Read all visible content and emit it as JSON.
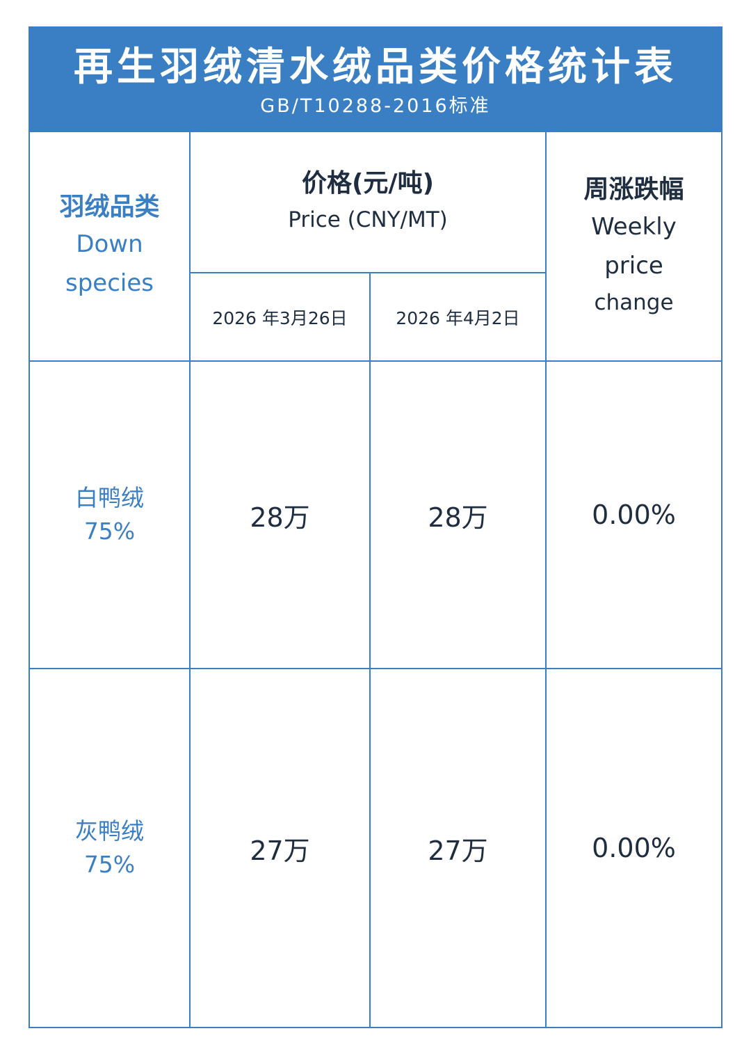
{
  "header": {
    "title": "再生羽绒清水绒品类价格统计表",
    "subtitle": "GB/T10288-2016标准"
  },
  "columns": {
    "species": {
      "cn": "羽绒品类",
      "en_line1": "Down",
      "en_line2": "species"
    },
    "price": {
      "cn": "价格(元/吨)",
      "en": "Price (CNY/MT)"
    },
    "date1": "2026 年3月26日",
    "date2": "2026 年4月2日",
    "change": {
      "cn": "周涨跌幅",
      "en_line1": "Weekly",
      "en_line2": "price",
      "en_line3": "change"
    }
  },
  "rows": [
    {
      "species_name": "白鸭绒",
      "species_grade": "75%",
      "price1": "28万",
      "price2": "28万",
      "change": "0.00%"
    },
    {
      "species_name": "灰鸭绒",
      "species_grade": "75%",
      "price1": "27万",
      "price2": "27万",
      "change": "0.00%"
    }
  ],
  "colors": {
    "accent": "#3a7fc4",
    "text_dark": "#1f2d40"
  }
}
